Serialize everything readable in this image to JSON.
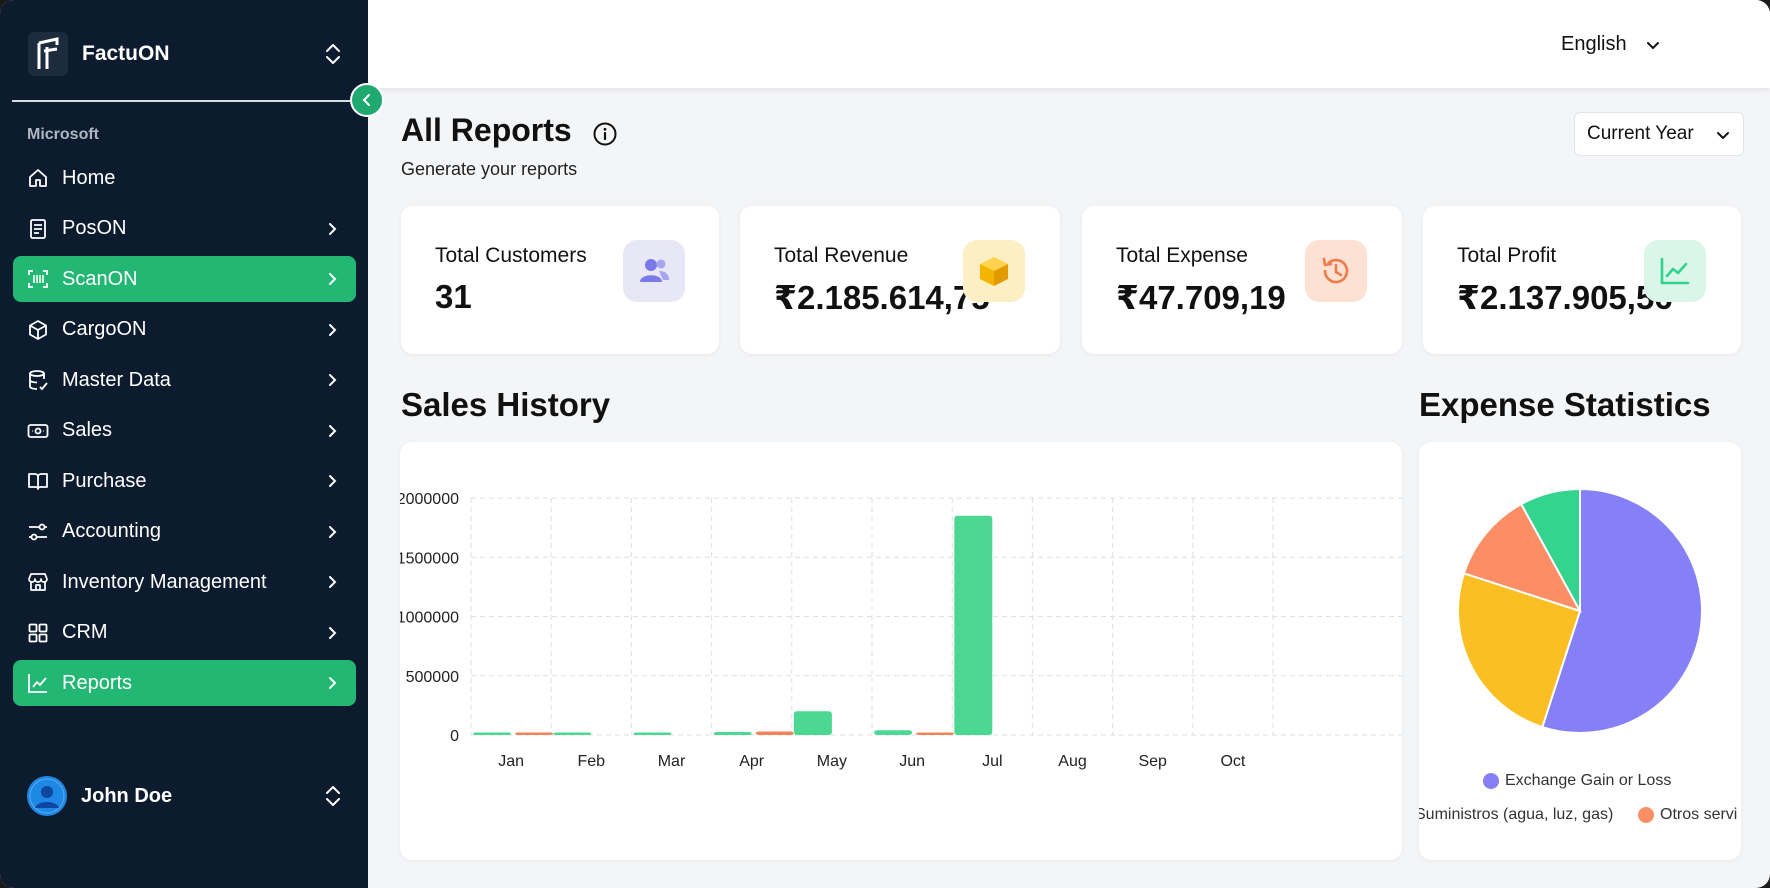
{
  "brand": {
    "name": "FactuON"
  },
  "sidebar": {
    "org": "Microsoft",
    "items": [
      {
        "label": "Home",
        "icon": "home-icon",
        "chevron": false,
        "active": false
      },
      {
        "label": "PosON",
        "icon": "receipt-icon",
        "chevron": true,
        "active": false
      },
      {
        "label": "ScanON",
        "icon": "scan-barcode-icon",
        "chevron": true,
        "active": true
      },
      {
        "label": "CargoON",
        "icon": "package-icon",
        "chevron": true,
        "active": false
      },
      {
        "label": "Master Data",
        "icon": "database-icon",
        "chevron": true,
        "active": false
      },
      {
        "label": "Sales",
        "icon": "banknote-icon",
        "chevron": true,
        "active": false
      },
      {
        "label": "Purchase",
        "icon": "book-open-icon",
        "chevron": true,
        "active": false
      },
      {
        "label": "Accounting",
        "icon": "sliders-icon",
        "chevron": true,
        "active": false
      },
      {
        "label": "Inventory Management",
        "icon": "store-icon",
        "chevron": true,
        "active": false
      },
      {
        "label": "CRM",
        "icon": "grid-icon",
        "chevron": true,
        "active": false
      },
      {
        "label": "Reports",
        "icon": "line-chart-icon",
        "chevron": true,
        "active": true
      }
    ],
    "user": {
      "name": "John Doe"
    }
  },
  "topbar": {
    "language": "English"
  },
  "page": {
    "title": "All Reports",
    "subtitle": "Generate your reports",
    "period": "Current Year"
  },
  "stats": [
    {
      "label": "Total Customers",
      "value": "31",
      "icon": "users-icon",
      "color": "#7b79e8"
    },
    {
      "label": "Total Revenue",
      "value": "₹2.185.614,75",
      "icon": "box-icon",
      "color": "#f5b400"
    },
    {
      "label": "Total Expense",
      "value": "₹47.709,19",
      "icon": "history-icon",
      "color": "#f07a4a"
    },
    {
      "label": "Total Profit",
      "value": "₹2.137.905,56",
      "icon": "trend-chart-icon",
      "color": "#2fd38c"
    }
  ],
  "sales_history": {
    "title": "Sales History",
    "chart_data": {
      "type": "bar",
      "categories": [
        "Jan",
        "Feb",
        "Mar",
        "Apr",
        "May",
        "Jun",
        "Jul",
        "Aug",
        "Sep",
        "Oct"
      ],
      "series": [
        {
          "color": "#4cd893",
          "values": [
            12000,
            20000,
            15000,
            25000,
            200000,
            40000,
            1850000,
            0,
            0,
            0
          ]
        },
        {
          "color": "#f5835a",
          "values": [
            8000,
            0,
            0,
            30000,
            0,
            10000,
            0,
            0,
            0,
            0
          ]
        }
      ],
      "yticks": [
        0,
        500000,
        1000000,
        1500000,
        2000000
      ],
      "ylim": [
        0,
        2000000
      ],
      "grid": true
    }
  },
  "expense_statistics": {
    "title": "Expense Statistics",
    "chart_data": {
      "type": "pie",
      "slices": [
        {
          "label": "Exchange Gain or Loss",
          "value": 55,
          "color": "#8580f5"
        },
        {
          "label": "Suministros (agua, luz, gas)",
          "value": 25,
          "color": "#fbbf24"
        },
        {
          "label": "Otros servi",
          "value": 12,
          "color": "#fb8e65"
        },
        {
          "label": "",
          "value": 8,
          "color": "#34d38e"
        }
      ],
      "legend": [
        {
          "label": "Exchange Gain or Loss",
          "color": "#8580f5"
        },
        {
          "label": "Suministros (agua, luz, gas)",
          "color": "#fbbf24"
        },
        {
          "label": "Otros servi",
          "color": "#fb8e65"
        }
      ]
    }
  }
}
